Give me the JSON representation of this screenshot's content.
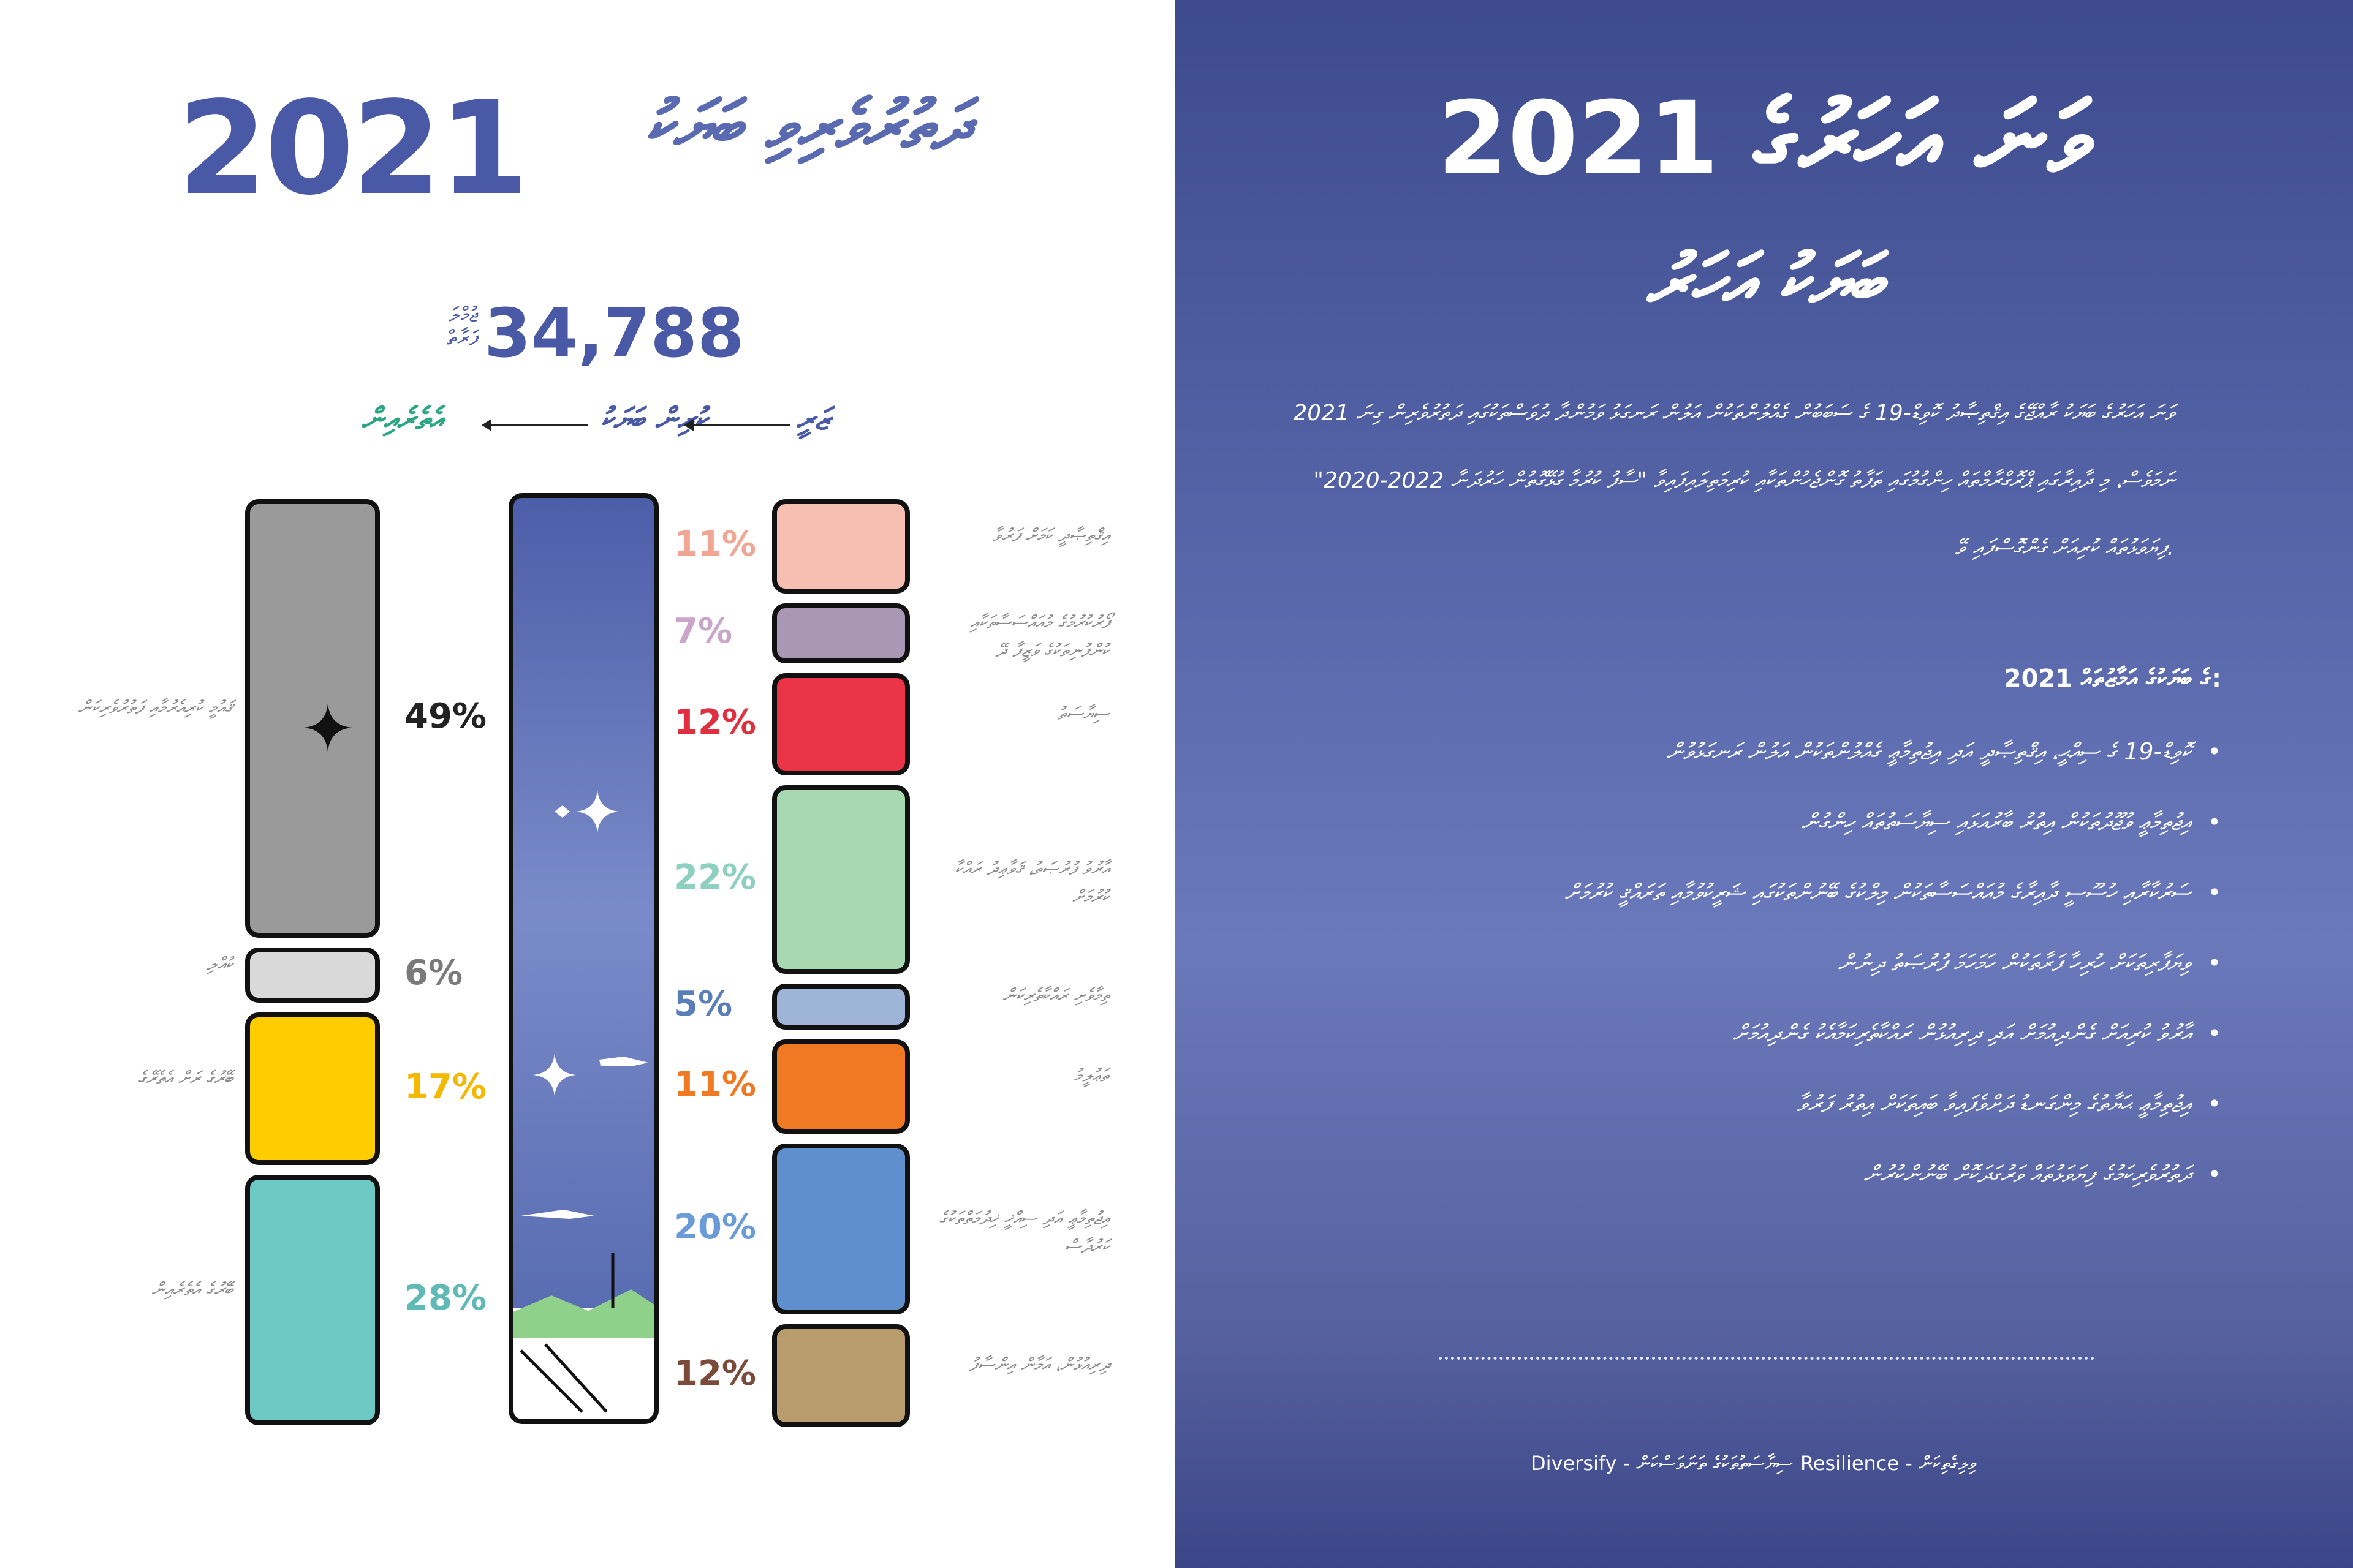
{
  "left": {
    "year": "2021",
    "title_dv": "ދަތުރުވެރިވި ބަޔަކު",
    "total_label": "ޖުމްލަ ފަރާތް",
    "total": "34,788",
    "flow": {
      "from": "ޒަރީ",
      "mid": "ކުރިން ބަޔަކު",
      "to": "އެތެރެއިން"
    }
  },
  "chart_data": [
    {
      "type": "bar",
      "title": "",
      "stacked": true,
      "categories": [
        "49%",
        "6%",
        "17%",
        "28%"
      ],
      "values": [
        49,
        6,
        17,
        28
      ],
      "colors": [
        "#9a9a9a",
        "#d9d9d9",
        "#ffcc00",
        "#6cc9c4"
      ],
      "labels": [
        "ޤައުމީ ކުރިއެރުމާއި ފަތުރުވެރިކަން",
        "ކުއްލި",
        "ބޭރުގެ ރަށް އެތެރޭގެ",
        "ބޭރުގެ އެތެރެއިން"
      ],
      "pct_colors": [
        "#222222",
        "#7a7a7a",
        "#f5b800",
        "#5fbab5"
      ]
    },
    {
      "type": "bar",
      "title": "",
      "stacked": true,
      "categories": [
        "11%",
        "7%",
        "12%",
        "22%",
        "5%",
        "11%",
        "20%",
        "12%"
      ],
      "values": [
        11,
        7,
        12,
        22,
        5,
        11,
        20,
        12
      ],
      "colors": [
        "#f6bfb2",
        "#a997b6",
        "#ec3448",
        "#a8d8b0",
        "#9fb5d7",
        "#f07a23",
        "#5f8fcc",
        "#b89c6e"
      ],
      "pct_colors": [
        "#f1a593",
        "#c9a6c9",
        "#e0303f",
        "#8ed0c0",
        "#5a7fb8",
        "#f07a23",
        "#6b9bd6",
        "#7b4a3a"
      ],
      "labels": [
        "އިޤްތިޞާދީ ކަމަށް ފަރުވާ",
        "ފޯރުކުރުމުގެ މުއައްސަސާތަކާއި ކުންފުނިތަކުގެ ވަޒީފާ ދޭ",
        "ސިޔާސަތު",
        "އާރުވު ފުރުޞަތު، ޤަވާޢިދު ރައްކާ ކުރުމަށް",
        "ތިމާވެށި ރައްކާތެރިކަން",
        "ތަޢުލީމު",
        "އިޖުތިމާޢީ އަދި ސިއްޚީ ޚިދުމަތްތަކުގެ ކަރުދާސް",
        "ދިރިއުޅުން، އަމާން އިންސާފު"
      ]
    }
  ],
  "right": {
    "title_line1": "2021 ވަނަ އަހަރުގެ",
    "title_line2": "ބަޔަކު އަހަރު",
    "paragraph": "2021 ވަނަ އަހަރުގެ ބަޔަކު ރާއްޖޭގެ އިޤްތިޞާދު ކޮވިޑް-19 ގެ ސަބަބުން ގެއްލުންތަކުން އަލުން ރަނގަޅު ވަމުންދާ ދުވަސްތަކުގައި ދަތުރުވެރިން ގިނަ ނަމަވެސް، މި ދާއިރާގައި ޕްރޮގްރާމްތައް ހިންގުމުގައި ތަފާތު ގޮންޖެހުންތަކާއި ކުރިމަތިލައިފައިވާ \"ސާފު ކުރުމާ ގުޅޭގޮތުން ހަރުދަނާ 2022-2020\" ފިޔަވަޅުތައް ކުރިއަށް ގެންގޮސްފައި ވޭ.",
    "list_heading": "2021 ގެ ބަޔަކުގެ އަމާޒުތައް:",
    "list": [
      "ކޮވިޑް-19 ގެ ސިއްޙީ، އިޤްތިޞާދީ އަދި އިޖުތިމާޢީ ގެއްލުންތަކުން އަލުން ރަނގަޅުވުން",
      "އިޖުތިމާޢީ ވުޖޫދުތަކުން އިތުރު ބާރުއަޅައި ސިޔާސަތުތައް ހިންގުން",
      "ސަރުކާރާއި ހުސޫސީ ދާއިރާގެ މުއައްސަސާތަކުން މިލްކުގެ ބޭނުންތަކުގައި ޝަރީކުވުމާއި ތަރައްޤީ ކުރުމަށް",
      "ވިޔަފާރިތަކަށް ހުރިހާ ފަރާތަކުން ހަމަހަމަ ފުރުޞަތު ދިނުން",
      "އާރުވު ކުރިއަށް ގެންދިއުމަށް އަދި ދިރިއުޅުން ރައްކާތެރިކަމާއެކު ގެންދިއުމަށް",
      "އިޖުތިމާޢީ ޙަޔާތުގެ މިންގަނޑު ދަށްވެފައިވާ ބައިތަކަށް އިތުރު ފަރުވާ",
      "ދަތުރުވެރިކަމުގެ ފިޔަވަޅުތައް ވަރުގަދަކޮށް ބޭނުންކުރުން"
    ],
    "legend_left": "Diversify - ސިޔާސަތުތަކުގެ ތަނަވަސްކަން",
    "legend_right": "Resilience - ވިލިގެތިކަން"
  }
}
